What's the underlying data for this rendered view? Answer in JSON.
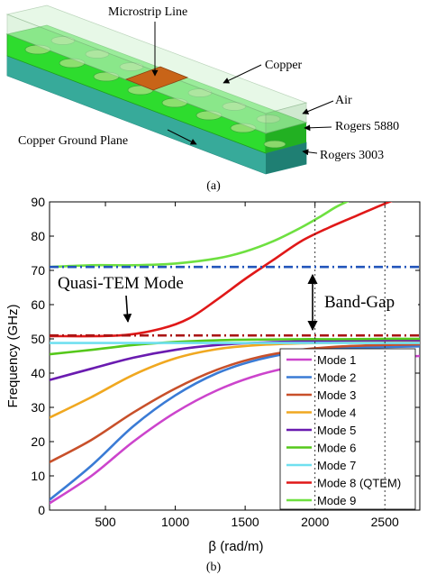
{
  "panel_a": {
    "labels": {
      "microstrip": "Microstrip Line",
      "copper": "Copper",
      "air": "Air",
      "rogers5880": "Rogers 5880",
      "ground": "Copper Ground Plane",
      "rogers3003": "Rogers 3003"
    },
    "caption": "(a)",
    "colors": {
      "air": "#c8ecc8",
      "rogers5880": "#2edc2e",
      "rogers3003": "#3cb6a8",
      "copper": "#c86418"
    }
  },
  "panel_b": {
    "caption": "(b)",
    "annotations": {
      "quasi_tem": "Quasi-TEM Mode",
      "band_gap": "Band-Gap"
    }
  },
  "chart_data": {
    "type": "line",
    "title": "",
    "xlabel": "β (rad/m)",
    "ylabel": "Frequency (GHz)",
    "xlim": [
      100,
      2750
    ],
    "ylim": [
      0,
      90
    ],
    "xticks": [
      500,
      1000,
      1500,
      2000,
      2500
    ],
    "yticks": [
      0,
      10,
      20,
      30,
      40,
      50,
      60,
      70,
      80,
      90
    ],
    "grid": false,
    "legend_position": "bottom-right",
    "series": [
      {
        "name": "Mode 1",
        "color": "#cc44cc",
        "x": [
          100,
          400,
          700,
          1000,
          1300,
          1600,
          1900,
          2200,
          2500,
          2750
        ],
        "y": [
          2,
          10,
          20,
          28.5,
          35,
          39.5,
          42.3,
          44,
          44.7,
          45
        ]
      },
      {
        "name": "Mode 2",
        "color": "#3a7bd5",
        "x": [
          100,
          400,
          700,
          1000,
          1300,
          1600,
          1900,
          2200,
          2500,
          2750
        ],
        "y": [
          3,
          13,
          24.5,
          33.5,
          40,
          44,
          46.3,
          47.3,
          47.6,
          47.8
        ]
      },
      {
        "name": "Mode 3",
        "color": "#c8502a",
        "x": [
          100,
          400,
          700,
          1000,
          1300,
          1600,
          1900,
          2200,
          2500,
          2750
        ],
        "y": [
          14,
          20.5,
          28.5,
          35.5,
          41,
          44.7,
          46.8,
          47.8,
          48.2,
          48.4
        ]
      },
      {
        "name": "Mode 4",
        "color": "#f0a820",
        "x": [
          100,
          400,
          700,
          1000,
          1300,
          1600,
          1900,
          2200,
          2500,
          2750
        ],
        "y": [
          27,
          33,
          39.5,
          44.3,
          47,
          48.2,
          48.7,
          48.9,
          49,
          49
        ]
      },
      {
        "name": "Mode 5",
        "color": "#6a1bb0",
        "x": [
          100,
          400,
          700,
          1000,
          1300,
          1600,
          1900,
          2200,
          2500,
          2750
        ],
        "y": [
          38,
          41.3,
          44.5,
          46.8,
          48.2,
          48.9,
          49.3,
          49.5,
          49.6,
          49.6
        ]
      },
      {
        "name": "Mode 6",
        "color": "#55c81a",
        "x": [
          100,
          400,
          700,
          1000,
          1300,
          1600,
          1900,
          2200,
          2500,
          2750
        ],
        "y": [
          45.5,
          46.8,
          48.2,
          49.1,
          49.6,
          49.8,
          49.9,
          49.9,
          50,
          50
        ]
      },
      {
        "name": "Mode 7",
        "color": "#70e0f0",
        "x": [
          100,
          2750
        ],
        "y": [
          48.8,
          48.8
        ]
      },
      {
        "name": "Mode 8 (QTEM)",
        "color": "#e01818",
        "x": [
          100,
          600,
          900,
          1100,
          1300,
          1500,
          1700,
          1900,
          2100,
          2300,
          2500,
          2600
        ],
        "y": [
          50.8,
          51,
          53,
          56,
          61.5,
          67.5,
          73,
          78.5,
          82.5,
          86,
          89.5,
          91
        ]
      },
      {
        "name": "Mode 9",
        "color": "#6ee040",
        "x": [
          100,
          400,
          700,
          1000,
          1300,
          1500,
          1700,
          1900,
          2050,
          2150,
          2250
        ],
        "y": [
          71,
          71.5,
          71.5,
          72,
          73.5,
          75.5,
          78.5,
          82.5,
          86,
          88.5,
          90.5
        ]
      }
    ],
    "reference_lines": {
      "upper_dashdot": {
        "y": 71,
        "color": "#2255bb"
      },
      "lower_dashdot": {
        "y": 51,
        "color": "#aa1515"
      },
      "vertical_dotted": {
        "x": [
          2000,
          2500
        ],
        "color": "#222222"
      }
    }
  }
}
